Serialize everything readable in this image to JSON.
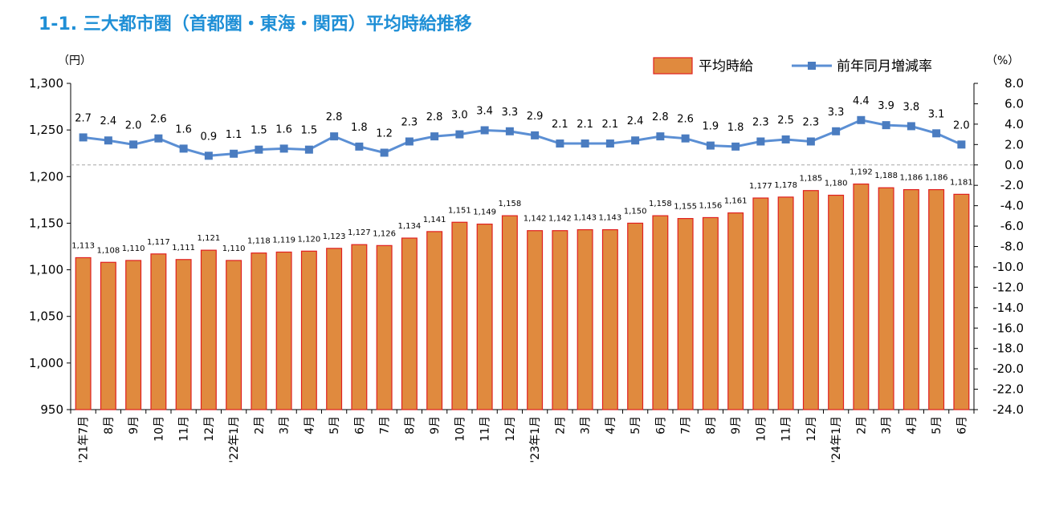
{
  "title": "1-1. 三大都市圏（首都圏・東海・関西）平均時給推移",
  "colors": {
    "title": "#1f8fd6",
    "bar_fill": "#e08a3e",
    "bar_stroke": "#e02020",
    "line": "#5b8fd4",
    "marker": "#4a7cc0",
    "zero_line": "#a6a6a6"
  },
  "chart_data": {
    "type": "bar+line",
    "title": "1-1. 三大都市圏（首都圏・東海・関西）平均時給推移",
    "categories": [
      "'21年7月",
      "8月",
      "9月",
      "10月",
      "11月",
      "12月",
      "'22年1月",
      "2月",
      "3月",
      "4月",
      "5月",
      "6月",
      "7月",
      "8月",
      "9月",
      "10月",
      "11月",
      "12月",
      "'23年1月",
      "2月",
      "3月",
      "4月",
      "5月",
      "6月",
      "7月",
      "8月",
      "9月",
      "10月",
      "11月",
      "12月",
      "'24年1月",
      "2月",
      "3月",
      "4月",
      "5月",
      "6月"
    ],
    "series": [
      {
        "name": "平均時給",
        "type": "bar",
        "axis": "left",
        "values": [
          1113,
          1108,
          1110,
          1117,
          1111,
          1121,
          1110,
          1118,
          1119,
          1120,
          1123,
          1127,
          1126,
          1134,
          1141,
          1151,
          1149,
          1158,
          1142,
          1142,
          1143,
          1143,
          1150,
          1158,
          1155,
          1156,
          1161,
          1177,
          1178,
          1185,
          1180,
          1192,
          1188,
          1186,
          1186,
          1181
        ],
        "labels": [
          "1,113",
          "1,108",
          "1,110",
          "1,117",
          "1,111",
          "1,121",
          "1,110",
          "1,118",
          "1,119",
          "1,120",
          "1,123",
          "1,127",
          "1,126",
          "1,134",
          "1,141",
          "1,151",
          "1,149",
          "1,158",
          "1,142",
          "1,142",
          "1,143",
          "1,143",
          "1,150",
          "1,158",
          "1,155",
          "1,156",
          "1,161",
          "1,177",
          "1,178",
          "1,185",
          "1,180",
          "1,192",
          "1,188",
          "1,186",
          "1,186",
          "1,181"
        ]
      },
      {
        "name": "前年同月増減率",
        "type": "line",
        "axis": "right",
        "values": [
          2.7,
          2.4,
          2.0,
          2.6,
          1.6,
          0.9,
          1.1,
          1.5,
          1.6,
          1.5,
          2.8,
          1.8,
          1.2,
          2.3,
          2.8,
          3.0,
          3.4,
          3.3,
          2.9,
          2.1,
          2.1,
          2.1,
          2.4,
          2.8,
          2.6,
          1.9,
          1.8,
          2.3,
          2.5,
          2.3,
          3.3,
          4.4,
          3.9,
          3.8,
          3.1,
          2.0
        ],
        "labels": [
          "2.7",
          "2.4",
          "2.0",
          "2.6",
          "1.6",
          "0.9",
          "1.1",
          "1.5",
          "1.6",
          "1.5",
          "2.8",
          "1.8",
          "1.2",
          "2.3",
          "2.8",
          "3.0",
          "3.4",
          "3.3",
          "2.9",
          "2.1",
          "2.1",
          "2.1",
          "2.4",
          "2.8",
          "2.6",
          "1.9",
          "1.8",
          "2.3",
          "2.5",
          "2.3",
          "3.3",
          "4.4",
          "3.9",
          "3.8",
          "3.1",
          "2.0"
        ]
      }
    ],
    "left_axis": {
      "unit": "（円）",
      "ylim": [
        950,
        1300
      ],
      "ticks": [
        950,
        1000,
        1050,
        1100,
        1150,
        1200,
        1250,
        1300
      ],
      "tick_labels": [
        "950",
        "1,000",
        "1,050",
        "1,100",
        "1,150",
        "1,200",
        "1,250",
        "1,300"
      ]
    },
    "right_axis": {
      "unit": "（%）",
      "ylim": [
        -24,
        8
      ],
      "ticks": [
        8,
        6,
        4,
        2,
        0,
        -2,
        -4,
        -6,
        -8,
        -10,
        -12,
        -14,
        -16,
        -18,
        -20,
        -22,
        -24
      ],
      "tick_labels": [
        "8.0",
        "6.0",
        "4.0",
        "2.0",
        "0.0",
        "-2.0",
        "-4.0",
        "-6.0",
        "-8.0",
        "-10.0",
        "-12.0",
        "-14.0",
        "-16.0",
        "-18.0",
        "-20.0",
        "-22.0",
        "-24.0"
      ]
    },
    "grid": false,
    "legend_position": "top-right"
  }
}
